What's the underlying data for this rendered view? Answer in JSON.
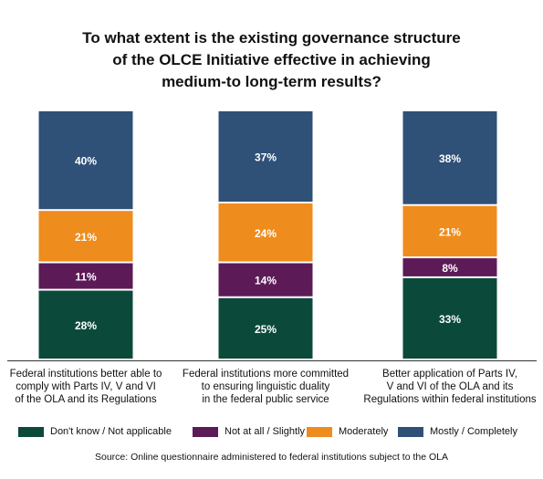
{
  "chart_data": {
    "type": "bar",
    "stacked": true,
    "title_lines": [
      "To what extent is the existing governance structure",
      "of the OLCE Initiative effective in achieving",
      "medium-to long-term results?"
    ],
    "categories": [
      "Federal institutions better able to comply with Parts IV, V and VI of the OLA and its Regulations",
      "Federal institutions more committed to ensuring linguistic duality in the federal public service",
      "Better application of Parts IV, V and VI of the OLA and its Regulations within federal institutions"
    ],
    "category_lines": [
      [
        "Federal institutions better able to",
        "comply with Parts IV, V and VI",
        "of the OLA and its Regulations"
      ],
      [
        "Federal institutions more committed",
        "to ensuring linguistic duality",
        "in the federal public service"
      ],
      [
        "Better application of Parts IV,",
        "V and VI of the OLA and its",
        "Regulations within federal institutions"
      ]
    ],
    "series": [
      {
        "name": "Don't know / Not applicable",
        "color": "#0b4a3b",
        "values": [
          28,
          25,
          33
        ],
        "labels": [
          "28%",
          "25%",
          "33%"
        ]
      },
      {
        "name": "Not at all / Slightly",
        "color": "#5c1a57",
        "values": [
          11,
          14,
          8
        ],
        "labels": [
          "11%",
          "14%",
          "8%"
        ]
      },
      {
        "name": "Moderately",
        "color": "#ee8c1d",
        "values": [
          21,
          24,
          21
        ],
        "labels": [
          "21%",
          "24%",
          "21%"
        ]
      },
      {
        "name": "Mostly / Completely",
        "color": "#2f5077",
        "values": [
          40,
          37,
          38
        ],
        "labels": [
          "40%",
          "37%",
          "38%"
        ]
      }
    ],
    "ylim": [
      0,
      100
    ],
    "grid": false,
    "legend_position": "bottom",
    "source": "Source: Online questionnaire administered to federal institutions subject to the OLA"
  }
}
